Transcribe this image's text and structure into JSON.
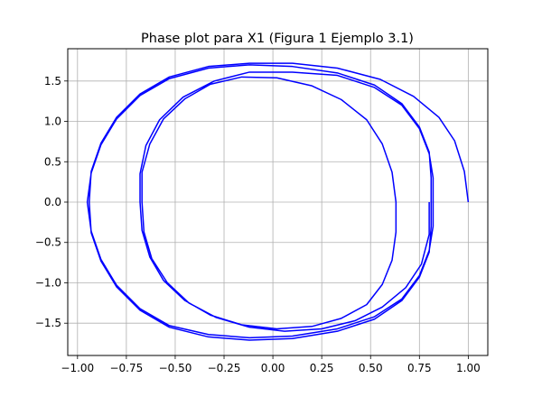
{
  "chart_data": {
    "type": "line",
    "title": "Phase plot para X1 (Figura 1 Ejemplo 3.1)",
    "xlabel": "",
    "ylabel": "",
    "xlim": [
      -1.05,
      1.1
    ],
    "ylim": [
      -1.9,
      1.9
    ],
    "xticks": [
      -1.0,
      -0.75,
      -0.5,
      -0.25,
      0.0,
      0.25,
      0.5,
      0.75,
      1.0
    ],
    "xtick_labels": [
      "−1.00",
      "−0.75",
      "−0.50",
      "−0.25",
      "0.00",
      "0.25",
      "0.50",
      "0.75",
      "1.00"
    ],
    "yticks": [
      -1.5,
      -1.0,
      -0.5,
      0.0,
      0.5,
      1.0,
      1.5
    ],
    "ytick_labels": [
      "−1.5",
      "−1.0",
      "−0.5",
      "0.0",
      "0.5",
      "1.0",
      "1.5"
    ],
    "grid": true,
    "legend": "none",
    "series_color": "#0000ff",
    "series": [
      {
        "points": [
          [
            1.0,
            0.0
          ],
          [
            0.98,
            0.38
          ],
          [
            0.93,
            0.76
          ],
          [
            0.85,
            1.05
          ],
          [
            0.72,
            1.31
          ],
          [
            0.55,
            1.52
          ],
          [
            0.33,
            1.66
          ],
          [
            0.1,
            1.72
          ],
          [
            -0.12,
            1.72
          ],
          [
            -0.33,
            1.68
          ],
          [
            -0.53,
            1.55
          ],
          [
            -0.68,
            1.34
          ],
          [
            -0.8,
            1.05
          ],
          [
            -0.88,
            0.73
          ],
          [
            -0.93,
            0.38
          ],
          [
            -0.94,
            0.0
          ],
          [
            -0.93,
            -0.38
          ],
          [
            -0.88,
            -0.73
          ],
          [
            -0.8,
            -1.05
          ],
          [
            -0.68,
            -1.34
          ],
          [
            -0.53,
            -1.55
          ],
          [
            -0.33,
            -1.67
          ],
          [
            -0.12,
            -1.71
          ],
          [
            0.1,
            -1.69
          ],
          [
            0.33,
            -1.6
          ],
          [
            0.52,
            -1.45
          ],
          [
            0.66,
            -1.22
          ],
          [
            0.75,
            -0.93
          ],
          [
            0.8,
            -0.62
          ],
          [
            0.81,
            -0.3
          ],
          [
            0.81,
            0.0
          ],
          [
            0.81,
            0.3
          ],
          [
            0.8,
            0.62
          ],
          [
            0.75,
            0.93
          ],
          [
            0.66,
            1.22
          ],
          [
            0.52,
            1.45
          ],
          [
            0.33,
            1.6
          ],
          [
            0.1,
            1.68
          ],
          [
            -0.12,
            1.7
          ],
          [
            -0.33,
            1.66
          ],
          [
            -0.53,
            1.53
          ],
          [
            -0.68,
            1.32
          ],
          [
            -0.8,
            1.03
          ],
          [
            -0.88,
            0.71
          ],
          [
            -0.93,
            0.36
          ],
          [
            -0.95,
            0.0
          ],
          [
            -0.93,
            -0.36
          ],
          [
            -0.88,
            -0.71
          ],
          [
            -0.8,
            -1.03
          ],
          [
            -0.68,
            -1.32
          ],
          [
            -0.53,
            -1.53
          ],
          [
            -0.33,
            -1.64
          ],
          [
            -0.12,
            -1.68
          ],
          [
            0.1,
            -1.66
          ],
          [
            0.33,
            -1.57
          ],
          [
            0.52,
            -1.42
          ],
          [
            0.66,
            -1.2
          ],
          [
            0.75,
            -0.91
          ],
          [
            0.8,
            -0.6
          ],
          [
            0.82,
            -0.3
          ],
          [
            0.82,
            0.0
          ],
          [
            0.82,
            0.3
          ],
          [
            0.8,
            0.6
          ],
          [
            0.75,
            0.91
          ],
          [
            0.66,
            1.2
          ],
          [
            0.52,
            1.42
          ],
          [
            0.33,
            1.57
          ],
          [
            0.1,
            1.61
          ],
          [
            -0.12,
            1.61
          ],
          [
            -0.3,
            1.5
          ],
          [
            -0.46,
            1.3
          ],
          [
            -0.58,
            1.02
          ],
          [
            -0.65,
            0.7
          ],
          [
            -0.68,
            0.35
          ],
          [
            -0.68,
            0.0
          ],
          [
            -0.67,
            -0.35
          ],
          [
            -0.63,
            -0.68
          ],
          [
            -0.56,
            -0.97
          ],
          [
            -0.45,
            -1.22
          ],
          [
            -0.32,
            -1.4
          ],
          [
            -0.16,
            -1.52
          ],
          [
            0.02,
            -1.57
          ],
          [
            0.2,
            -1.54
          ],
          [
            0.35,
            -1.44
          ],
          [
            0.48,
            -1.27
          ],
          [
            0.56,
            -1.02
          ],
          [
            0.61,
            -0.72
          ],
          [
            0.63,
            -0.37
          ],
          [
            0.63,
            0.0
          ],
          [
            0.61,
            0.37
          ],
          [
            0.56,
            0.72
          ],
          [
            0.48,
            1.02
          ],
          [
            0.35,
            1.27
          ],
          [
            0.2,
            1.44
          ],
          [
            0.02,
            1.54
          ],
          [
            -0.16,
            1.55
          ],
          [
            -0.32,
            1.46
          ],
          [
            -0.45,
            1.28
          ],
          [
            -0.56,
            1.03
          ],
          [
            -0.63,
            0.72
          ],
          [
            -0.67,
            0.37
          ],
          [
            -0.67,
            0.0
          ],
          [
            -0.66,
            -0.37
          ],
          [
            -0.62,
            -0.7
          ],
          [
            -0.54,
            -1.0
          ],
          [
            -0.43,
            -1.25
          ],
          [
            -0.29,
            -1.43
          ],
          [
            -0.12,
            -1.55
          ],
          [
            0.06,
            -1.6
          ],
          [
            0.25,
            -1.57
          ],
          [
            0.42,
            -1.47
          ],
          [
            0.56,
            -1.3
          ],
          [
            0.68,
            -1.06
          ],
          [
            0.76,
            -0.77
          ],
          [
            0.8,
            -0.4
          ],
          [
            0.8,
            0.0
          ]
        ]
      }
    ]
  }
}
